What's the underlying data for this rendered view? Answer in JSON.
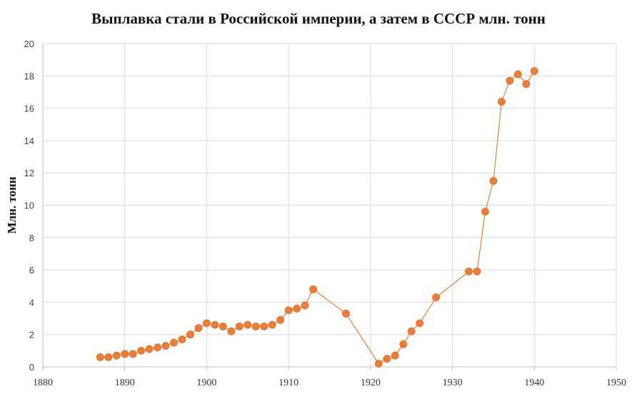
{
  "chart_data": {
    "type": "line",
    "title": "Выплавка стали в Российской империи, а затем в СССР млн. тонн",
    "xlabel": "",
    "ylabel": "Млн. тонн",
    "xlim": [
      1880,
      1950
    ],
    "ylim": [
      0,
      20
    ],
    "x_ticks": [
      1880,
      1890,
      1900,
      1910,
      1920,
      1930,
      1940,
      1950
    ],
    "y_ticks": [
      0,
      2,
      4,
      6,
      8,
      10,
      12,
      14,
      16,
      18,
      20
    ],
    "grid": true,
    "legend": "none",
    "colors": {
      "series": "#ed7d31",
      "grid": "#d9d9d9",
      "axis": "#bfbfbf"
    },
    "series": [
      {
        "x": [
          1887,
          1888,
          1889,
          1890,
          1891,
          1892,
          1893,
          1894,
          1895,
          1896,
          1897,
          1898,
          1899,
          1900,
          1901,
          1902,
          1903,
          1904,
          1905,
          1906,
          1907,
          1908,
          1909,
          1910,
          1911,
          1912,
          1913,
          1917,
          1921,
          1922,
          1923,
          1924,
          1925,
          1926,
          1928,
          1932,
          1933,
          1934,
          1935,
          1936,
          1937,
          1938,
          1939,
          1940
        ],
        "values": [
          0.6,
          0.6,
          0.7,
          0.8,
          0.8,
          1.0,
          1.1,
          1.2,
          1.3,
          1.5,
          1.7,
          2.0,
          2.4,
          2.7,
          2.6,
          2.5,
          2.2,
          2.5,
          2.6,
          2.5,
          2.5,
          2.6,
          2.9,
          3.5,
          3.6,
          3.8,
          4.8,
          3.3,
          0.2,
          0.5,
          0.7,
          1.4,
          2.2,
          2.7,
          4.3,
          5.9,
          5.9,
          9.6,
          11.5,
          16.4,
          17.7,
          18.1,
          17.5,
          18.3
        ]
      }
    ]
  }
}
